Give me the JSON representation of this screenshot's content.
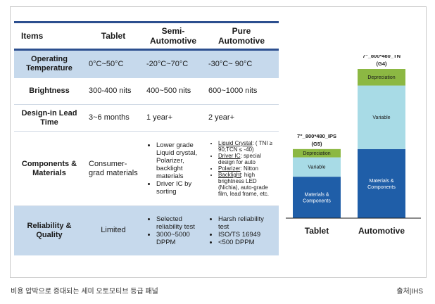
{
  "table": {
    "headers": [
      "Items",
      "Tablet",
      "Semi-\nAutomotive",
      "Pure\nAutomotive"
    ],
    "rows": {
      "operating_temp": {
        "label": "Operating Temperature",
        "tablet": "0°C~50°C",
        "semi": "-20°C~70°C",
        "pure": "-30°C~ 90°C"
      },
      "brightness": {
        "label": "Brightness",
        "tablet": "300-400 nits",
        "semi": "400~500 nits",
        "pure": "600~1000 nits"
      },
      "design_in": {
        "label": "Design-in Lead Time",
        "tablet": "3~6 months",
        "semi": "1 year+",
        "pure": "2 year+"
      },
      "components": {
        "label": "Components & Materials",
        "tablet": "Consumer-grad materials",
        "semi_items": [
          "Lower grade Liquid crystal, Polarizer, backlight materials",
          "Driver IC by sorting"
        ],
        "pure_items": [
          {
            "u": "Liquid Crystal",
            "t": ": ( TNI ≥ 90;TCN ≤ -40)"
          },
          {
            "u": "Driver IC",
            "t": ": special design for auto"
          },
          {
            "u": "Polarizer",
            "t": ": Nitton"
          },
          {
            "u": "Backlight",
            "t": ": high brightness LED (Nichia), auto-grade film, lead frame, etc."
          }
        ]
      },
      "reliability": {
        "label": "Reliability & Quality",
        "tablet": "Limited",
        "semi_items": [
          "Selected reliability test",
          "3000~5000 DPPM"
        ],
        "pure_items": [
          "Harsh reliability test",
          "ISO/TS 16949",
          "<500 DPPM"
        ]
      }
    }
  },
  "chart_data": {
    "type": "bar",
    "categories": [
      "Tablet",
      "Automotive"
    ],
    "bar_titles": [
      "7\"_800*480_IPS (G5)",
      "7\"_800*480_TN (G4)"
    ],
    "series": [
      {
        "name": "Materials & Components",
        "values": [
          30,
          50
        ],
        "color": "#1f5ea8"
      },
      {
        "name": "Variable",
        "values": [
          14,
          46
        ],
        "color": "#a8dbe6"
      },
      {
        "name": "Depreciation",
        "values": [
          6,
          12
        ],
        "color": "#8cb843"
      }
    ],
    "segment_labels": {
      "Tablet": [
        "Materials & Components",
        "Variable",
        "Depreciation"
      ],
      "Automotive": [
        "Materials & Components",
        "Variable",
        "Depreciation"
      ]
    },
    "ylim": [
      0,
      108
    ],
    "title": "",
    "xlabel": "",
    "ylabel": ""
  },
  "footer": {
    "caption": "비용 압박으로 증대되는 세미 오토모티브 등급 패널",
    "source": "출처|IHS"
  }
}
